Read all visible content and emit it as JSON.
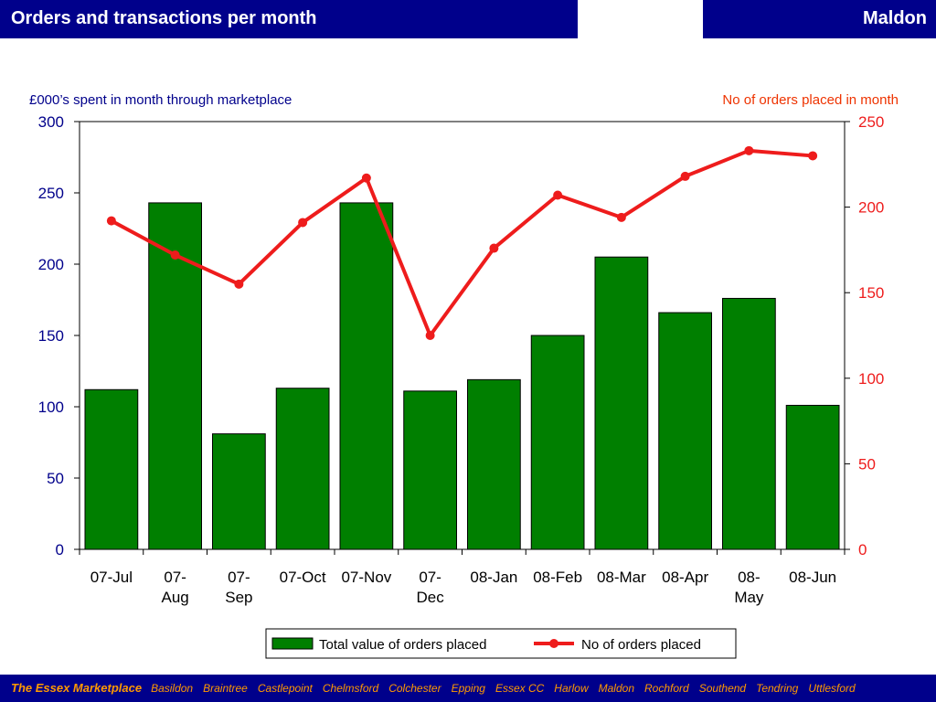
{
  "header": {
    "title": "Orders and transactions per month",
    "area": "Maldon"
  },
  "footer": {
    "brand": "The Essex Marketplace",
    "towns": [
      "Basildon",
      "Braintree",
      "Castlepoint",
      "Chelmsford",
      "Colchester",
      "Epping",
      "Essex CC",
      "Harlow",
      "Maldon",
      "Rochford",
      "Southend",
      "Tendring",
      "Uttlesford"
    ]
  },
  "chart_data": {
    "type": "bar",
    "left_axis_label": "£000’s spent in month through marketplace",
    "right_axis_label": "No of orders placed in month",
    "categories": [
      "07-Jul",
      "07-Aug",
      "07-Sep",
      "07-Oct",
      "07-Nov",
      "07-Dec",
      "08-Jan",
      "08-Feb",
      "08-Mar",
      "08-Apr",
      "08-May",
      "08-Jun"
    ],
    "category_labels": [
      [
        "07-Jul"
      ],
      [
        "07-",
        "Aug"
      ],
      [
        "07-",
        "Sep"
      ],
      [
        "07-Oct"
      ],
      [
        "07-Nov"
      ],
      [
        "07-",
        "Dec"
      ],
      [
        "08-Jan"
      ],
      [
        "08-Feb"
      ],
      [
        "08-Mar"
      ],
      [
        "08-Apr"
      ],
      [
        "08-",
        "May"
      ],
      [
        "08-Jun"
      ]
    ],
    "series": [
      {
        "name": "Total value of orders placed",
        "type": "bar",
        "axis": "left",
        "color": "#007f00",
        "values": [
          112,
          243,
          81,
          113,
          243,
          111,
          119,
          150,
          205,
          166,
          176,
          101
        ]
      },
      {
        "name": "No of orders placed",
        "type": "line",
        "axis": "right",
        "color": "#ee1c1c",
        "values": [
          192,
          172,
          155,
          191,
          217,
          125,
          176,
          207,
          194,
          218,
          233,
          230
        ]
      }
    ],
    "left_axis": {
      "min": 0,
      "max": 300,
      "ticks": [
        "0",
        "50",
        "100",
        "150",
        "200",
        "250",
        "300"
      ],
      "color": "#00008b"
    },
    "right_axis": {
      "min": 0,
      "max": 250,
      "ticks": [
        "0",
        "50",
        "100",
        "150",
        "200",
        "250"
      ],
      "color": "#ee1c1c"
    },
    "legend": {
      "position": "bottom"
    },
    "grid": false
  }
}
